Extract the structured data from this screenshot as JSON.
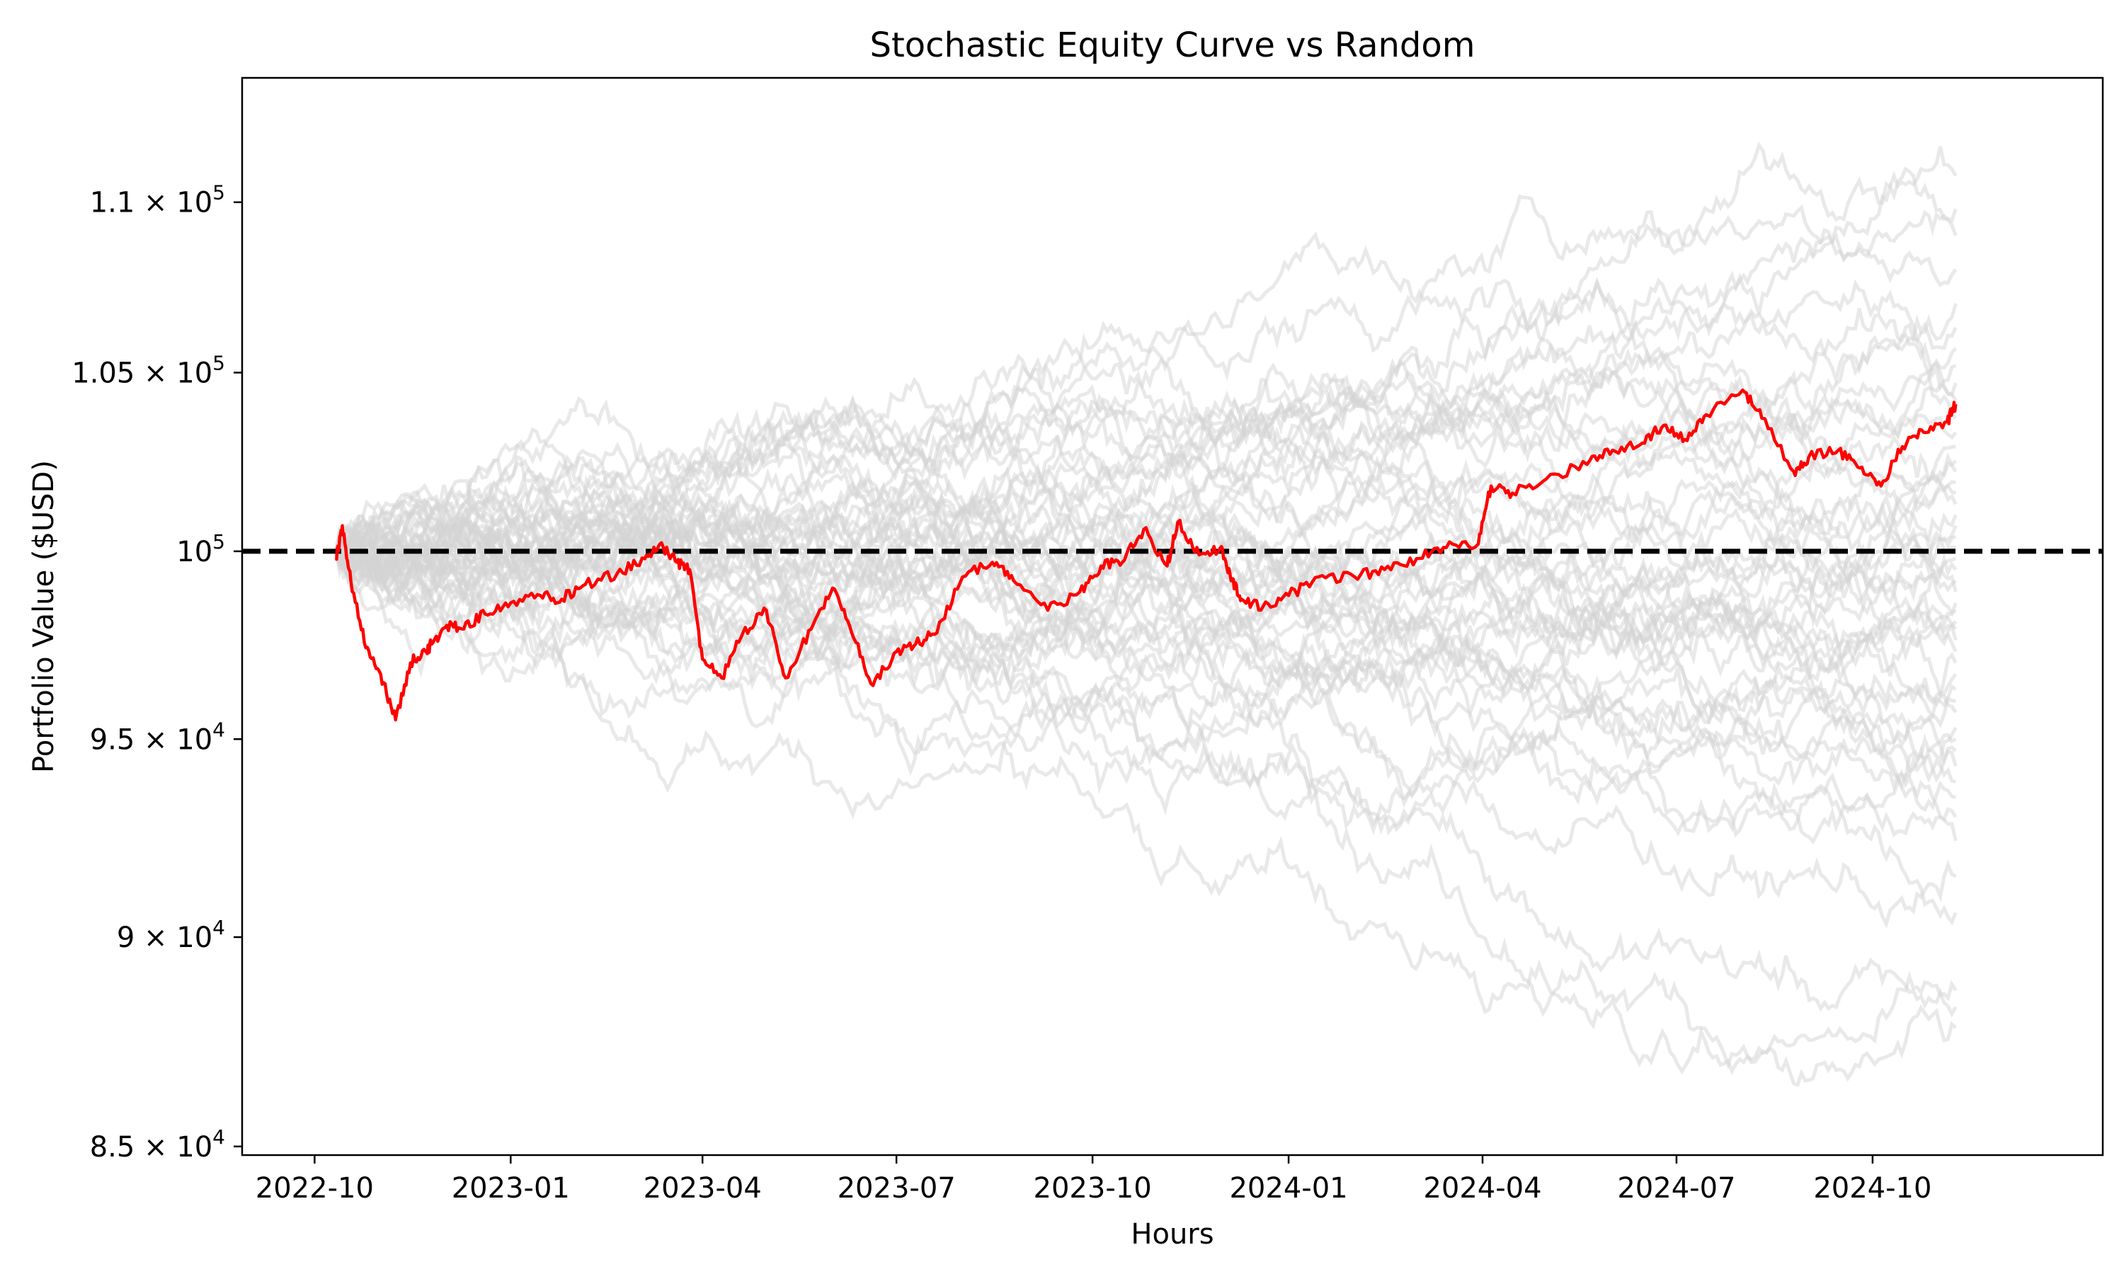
{
  "chart_data": {
    "type": "line",
    "title": "Stochastic Equity Curve vs Random",
    "xlabel": "Hours",
    "ylabel": "Portfolio Value ($USD)",
    "yscale": "log",
    "xlim": [
      "2022-08-28",
      "2025-01-17"
    ],
    "ylim": [
      84800,
      113800
    ],
    "x_ticks": [
      "2022-10",
      "2023-01",
      "2023-04",
      "2023-07",
      "2023-10",
      "2024-01",
      "2024-04",
      "2024-07",
      "2024-10"
    ],
    "x_tick_dates": [
      "2022-10-01",
      "2023-01-01",
      "2023-04-01",
      "2023-07-01",
      "2023-10-01",
      "2024-01-01",
      "2024-04-01",
      "2024-07-01",
      "2024-10-01"
    ],
    "y_ticks": [
      {
        "mantissa": "8.5",
        "exp": "4",
        "value": 85000
      },
      {
        "mantissa": "9",
        "exp": "4",
        "value": 90000
      },
      {
        "mantissa": "9.5",
        "exp": "4",
        "value": 95000
      },
      {
        "mantissa": "",
        "exp": "5",
        "value": 100000
      },
      {
        "mantissa": "1.05",
        "exp": "5",
        "value": 105000
      },
      {
        "mantissa": "1.1",
        "exp": "5",
        "value": 110000
      }
    ],
    "grid": false,
    "reference_line": {
      "value": 100000,
      "style": "dashed",
      "color": "#000000"
    },
    "colors": {
      "strategy": "#ff0000",
      "random": "#d3d3d3",
      "reference": "#000000"
    },
    "random_series_count": 50,
    "random_series_endpoints": [
      87800,
      88300,
      88700,
      90600,
      91500,
      92400,
      93000,
      93500,
      93900,
      94300,
      94700,
      95000,
      95300,
      95700,
      96000,
      96300,
      96700,
      97000,
      97300,
      97600,
      97900,
      98100,
      98400,
      98600,
      98900,
      99200,
      99500,
      99800,
      100100,
      100400,
      100700,
      101000,
      101300,
      101600,
      101900,
      102200,
      102500,
      102900,
      103300,
      103700,
      104200,
      104700,
      105200,
      105700,
      106300,
      107000,
      108000,
      109000,
      109800,
      110800
    ],
    "strategy_series": {
      "dates": [
        "2022-10-11",
        "2022-10-14",
        "2022-10-18",
        "2022-10-25",
        "2022-11-01",
        "2022-11-08",
        "2022-11-15",
        "2022-11-22",
        "2022-11-25",
        "2022-12-02",
        "2022-12-10",
        "2022-12-20",
        "2023-01-01",
        "2023-01-15",
        "2023-01-25",
        "2023-02-05",
        "2023-02-20",
        "2023-03-05",
        "2023-03-12",
        "2023-03-20",
        "2023-03-26",
        "2023-04-01",
        "2023-04-10",
        "2023-04-20",
        "2023-05-01",
        "2023-05-10",
        "2023-05-22",
        "2023-06-01",
        "2023-06-10",
        "2023-06-20",
        "2023-07-01",
        "2023-07-10",
        "2023-07-20",
        "2023-08-01",
        "2023-08-15",
        "2023-08-25",
        "2023-09-10",
        "2023-09-25",
        "2023-10-05",
        "2023-10-15",
        "2023-10-25",
        "2023-11-05",
        "2023-11-10",
        "2023-11-20",
        "2023-11-30",
        "2023-12-05",
        "2023-12-10",
        "2023-12-20",
        "2024-01-01",
        "2024-01-15",
        "2024-02-01",
        "2024-02-15",
        "2024-03-01",
        "2024-03-15",
        "2024-03-30",
        "2024-04-05",
        "2024-04-15",
        "2024-05-01",
        "2024-05-20",
        "2024-06-01",
        "2024-06-15",
        "2024-06-25",
        "2024-07-05",
        "2024-07-15",
        "2024-08-01",
        "2024-08-10",
        "2024-08-25",
        "2024-09-01",
        "2024-09-15",
        "2024-09-25",
        "2024-10-05",
        "2024-10-15",
        "2024-10-25",
        "2024-11-05",
        "2024-11-09"
      ],
      "values": [
        99800,
        100700,
        99200,
        97400,
        96700,
        95500,
        97000,
        97300,
        97500,
        98000,
        97900,
        98300,
        98600,
        98800,
        98700,
        99100,
        99400,
        99800,
        100200,
        99700,
        99500,
        97100,
        96600,
        97800,
        98400,
        96600,
        97900,
        99000,
        97800,
        96400,
        97300,
        97500,
        97800,
        99300,
        99700,
        99200,
        98400,
        98900,
        99600,
        99700,
        100600,
        99600,
        100800,
        99900,
        100100,
        99200,
        98700,
        98500,
        98800,
        99300,
        99300,
        99500,
        99800,
        100100,
        100200,
        101800,
        101600,
        102000,
        102400,
        102800,
        103000,
        103500,
        103100,
        103800,
        104500,
        103700,
        102200,
        102600,
        102800,
        102300,
        101800,
        102900,
        103300,
        103600,
        104100
      ]
    }
  }
}
